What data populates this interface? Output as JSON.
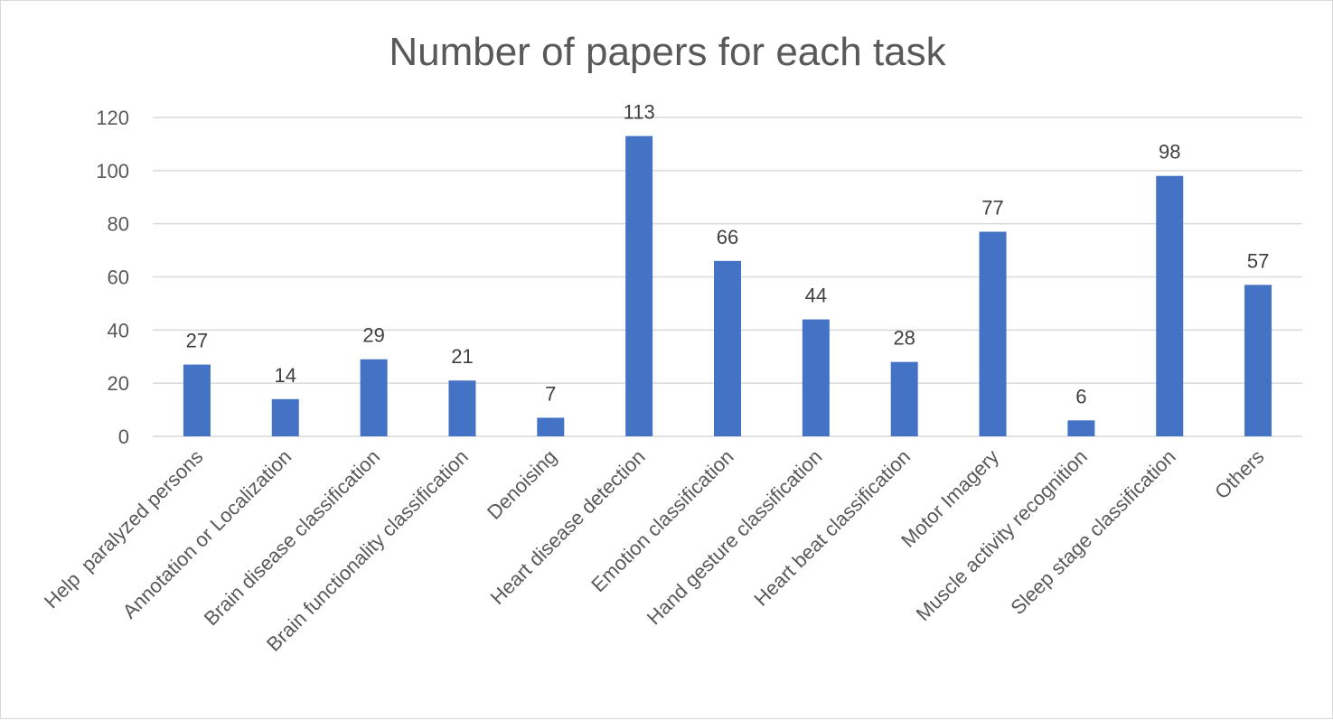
{
  "chart_data": {
    "type": "bar",
    "title": "Number of papers for each task",
    "categories": [
      "Help  paralyzed persons",
      "Annotation or Localization",
      "Brain disease classification",
      "Brain functionality classification",
      "Denoising",
      "Heart disease detection",
      "Emotion classification",
      "Hand gesture classification",
      "Heart beat classification",
      "Motor Imagery",
      "Muscle activity recognition",
      "Sleep stage classification",
      "Others"
    ],
    "values": [
      27,
      14,
      29,
      21,
      7,
      113,
      66,
      44,
      28,
      77,
      6,
      98,
      57
    ],
    "yticks": [
      "0",
      "20",
      "40",
      "60",
      "80",
      "100",
      "120"
    ],
    "ylim": [
      0,
      120
    ],
    "grid": true,
    "legend": "none",
    "colors": {
      "bar": "#4472c4",
      "grid": "#d9d9d9"
    }
  }
}
